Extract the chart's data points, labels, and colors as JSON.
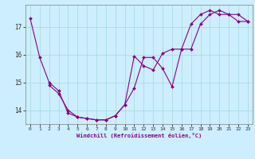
{
  "xlabel": "Windchill (Refroidissement éolien,°C)",
  "line1_x": [
    0,
    1,
    2,
    3,
    4,
    5,
    6,
    7,
    8,
    9,
    10,
    11,
    12,
    13,
    14,
    15,
    16,
    17,
    18,
    19,
    20,
    21,
    22,
    23
  ],
  "line1_y": [
    17.3,
    15.9,
    15.0,
    14.7,
    13.9,
    13.75,
    13.7,
    13.65,
    13.65,
    13.8,
    14.2,
    14.8,
    15.9,
    15.9,
    15.5,
    14.85,
    16.2,
    16.2,
    17.1,
    17.45,
    17.6,
    17.45,
    17.45,
    17.2
  ],
  "line2_x": [
    2,
    3,
    4,
    5,
    6,
    7,
    8,
    9,
    10,
    11,
    12,
    13,
    14,
    15,
    16,
    17,
    18,
    19,
    20,
    21,
    22,
    23
  ],
  "line2_y": [
    14.9,
    14.6,
    14.0,
    13.75,
    13.7,
    13.65,
    13.65,
    13.8,
    14.2,
    15.95,
    15.6,
    15.45,
    16.05,
    16.2,
    16.2,
    17.1,
    17.45,
    17.6,
    17.45,
    17.45,
    17.2,
    17.2
  ],
  "line_color": "#880088",
  "bg_color": "#cceeff",
  "grid_color": "#aadddd",
  "ylim": [
    13.5,
    17.8
  ],
  "xlim": [
    -0.5,
    23.5
  ],
  "yticks": [
    14,
    15,
    16,
    17
  ],
  "xticks": [
    0,
    1,
    2,
    3,
    4,
    5,
    6,
    7,
    8,
    9,
    10,
    11,
    12,
    13,
    14,
    15,
    16,
    17,
    18,
    19,
    20,
    21,
    22,
    23
  ]
}
